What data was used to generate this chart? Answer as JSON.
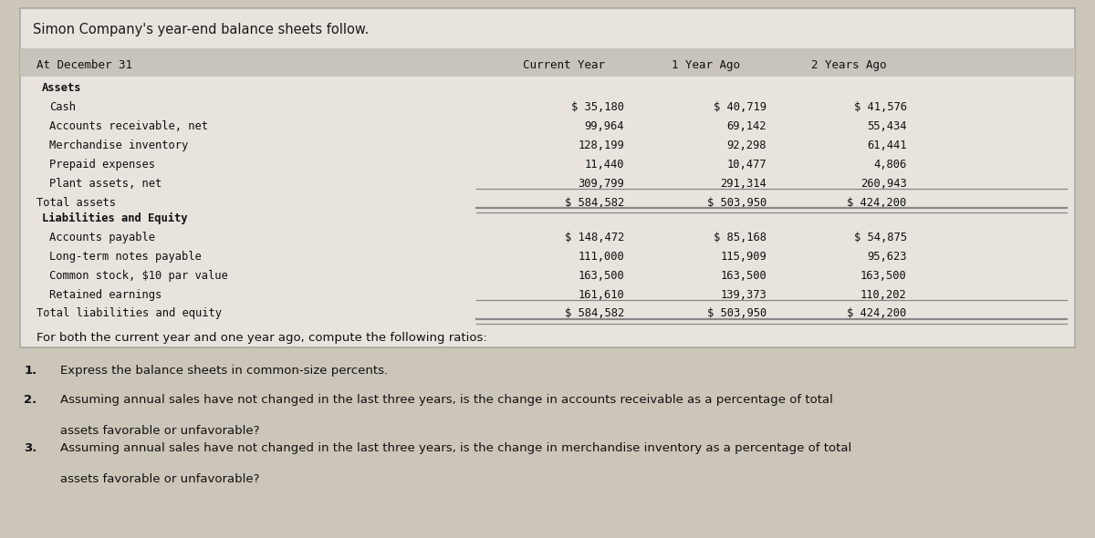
{
  "title": "Simon Company's year-end balance sheets follow.",
  "bg_color": "#ccc5b9",
  "box_color": "#e8e4dd",
  "header_strip_color": "#c8c4bc",
  "header_row_label": "At December 31",
  "col_headers": [
    "Current Year",
    "1 Year Ago",
    "2 Years Ago"
  ],
  "section1_label": "Assets",
  "section1_rows": [
    [
      "Cash",
      "$ 35,180",
      "$ 40,719",
      "$ 41,576"
    ],
    [
      "Accounts receivable, net",
      "99,964",
      "69,142",
      "55,434"
    ],
    [
      "Merchandise inventory",
      "128,199",
      "92,298",
      "61,441"
    ],
    [
      "Prepaid expenses",
      "11,440",
      "10,477",
      "4,806"
    ],
    [
      "Plant assets, net",
      "309,799",
      "291,314",
      "260,943"
    ]
  ],
  "total1_label": "Total assets",
  "total1_values": [
    "$ 584,582",
    "$ 503,950",
    "$ 424,200"
  ],
  "section2_label": "Liabilities and Equity",
  "section2_rows": [
    [
      "Accounts payable",
      "$ 148,472",
      "$ 85,168",
      "$ 54,875"
    ],
    [
      "Long-term notes payable",
      "111,000",
      "115,909",
      "95,623"
    ],
    [
      "Common stock, $10 par value",
      "163,500",
      "163,500",
      "163,500"
    ],
    [
      "Retained earnings",
      "161,610",
      "139,373",
      "110,202"
    ]
  ],
  "total2_label": "Total liabilities and equity",
  "total2_values": [
    "$ 584,582",
    "$ 503,950",
    "$ 424,200"
  ],
  "note_text": "For both the current year and one year ago, compute the following ratios:",
  "q1": "Express the balance sheets in common-size percents.",
  "q2": "Assuming annual sales have not changed in the last three years, is the change in accounts receivable as a percentage of total",
  "q2b": "assets favorable or unfavorable?",
  "q3": "Assuming annual sales have not changed in the last three years, is the change in merchandise inventory as a percentage of total",
  "q3b": "assets favorable or unfavorable?",
  "mono_font": "monospace",
  "sans_font": "sans-serif"
}
